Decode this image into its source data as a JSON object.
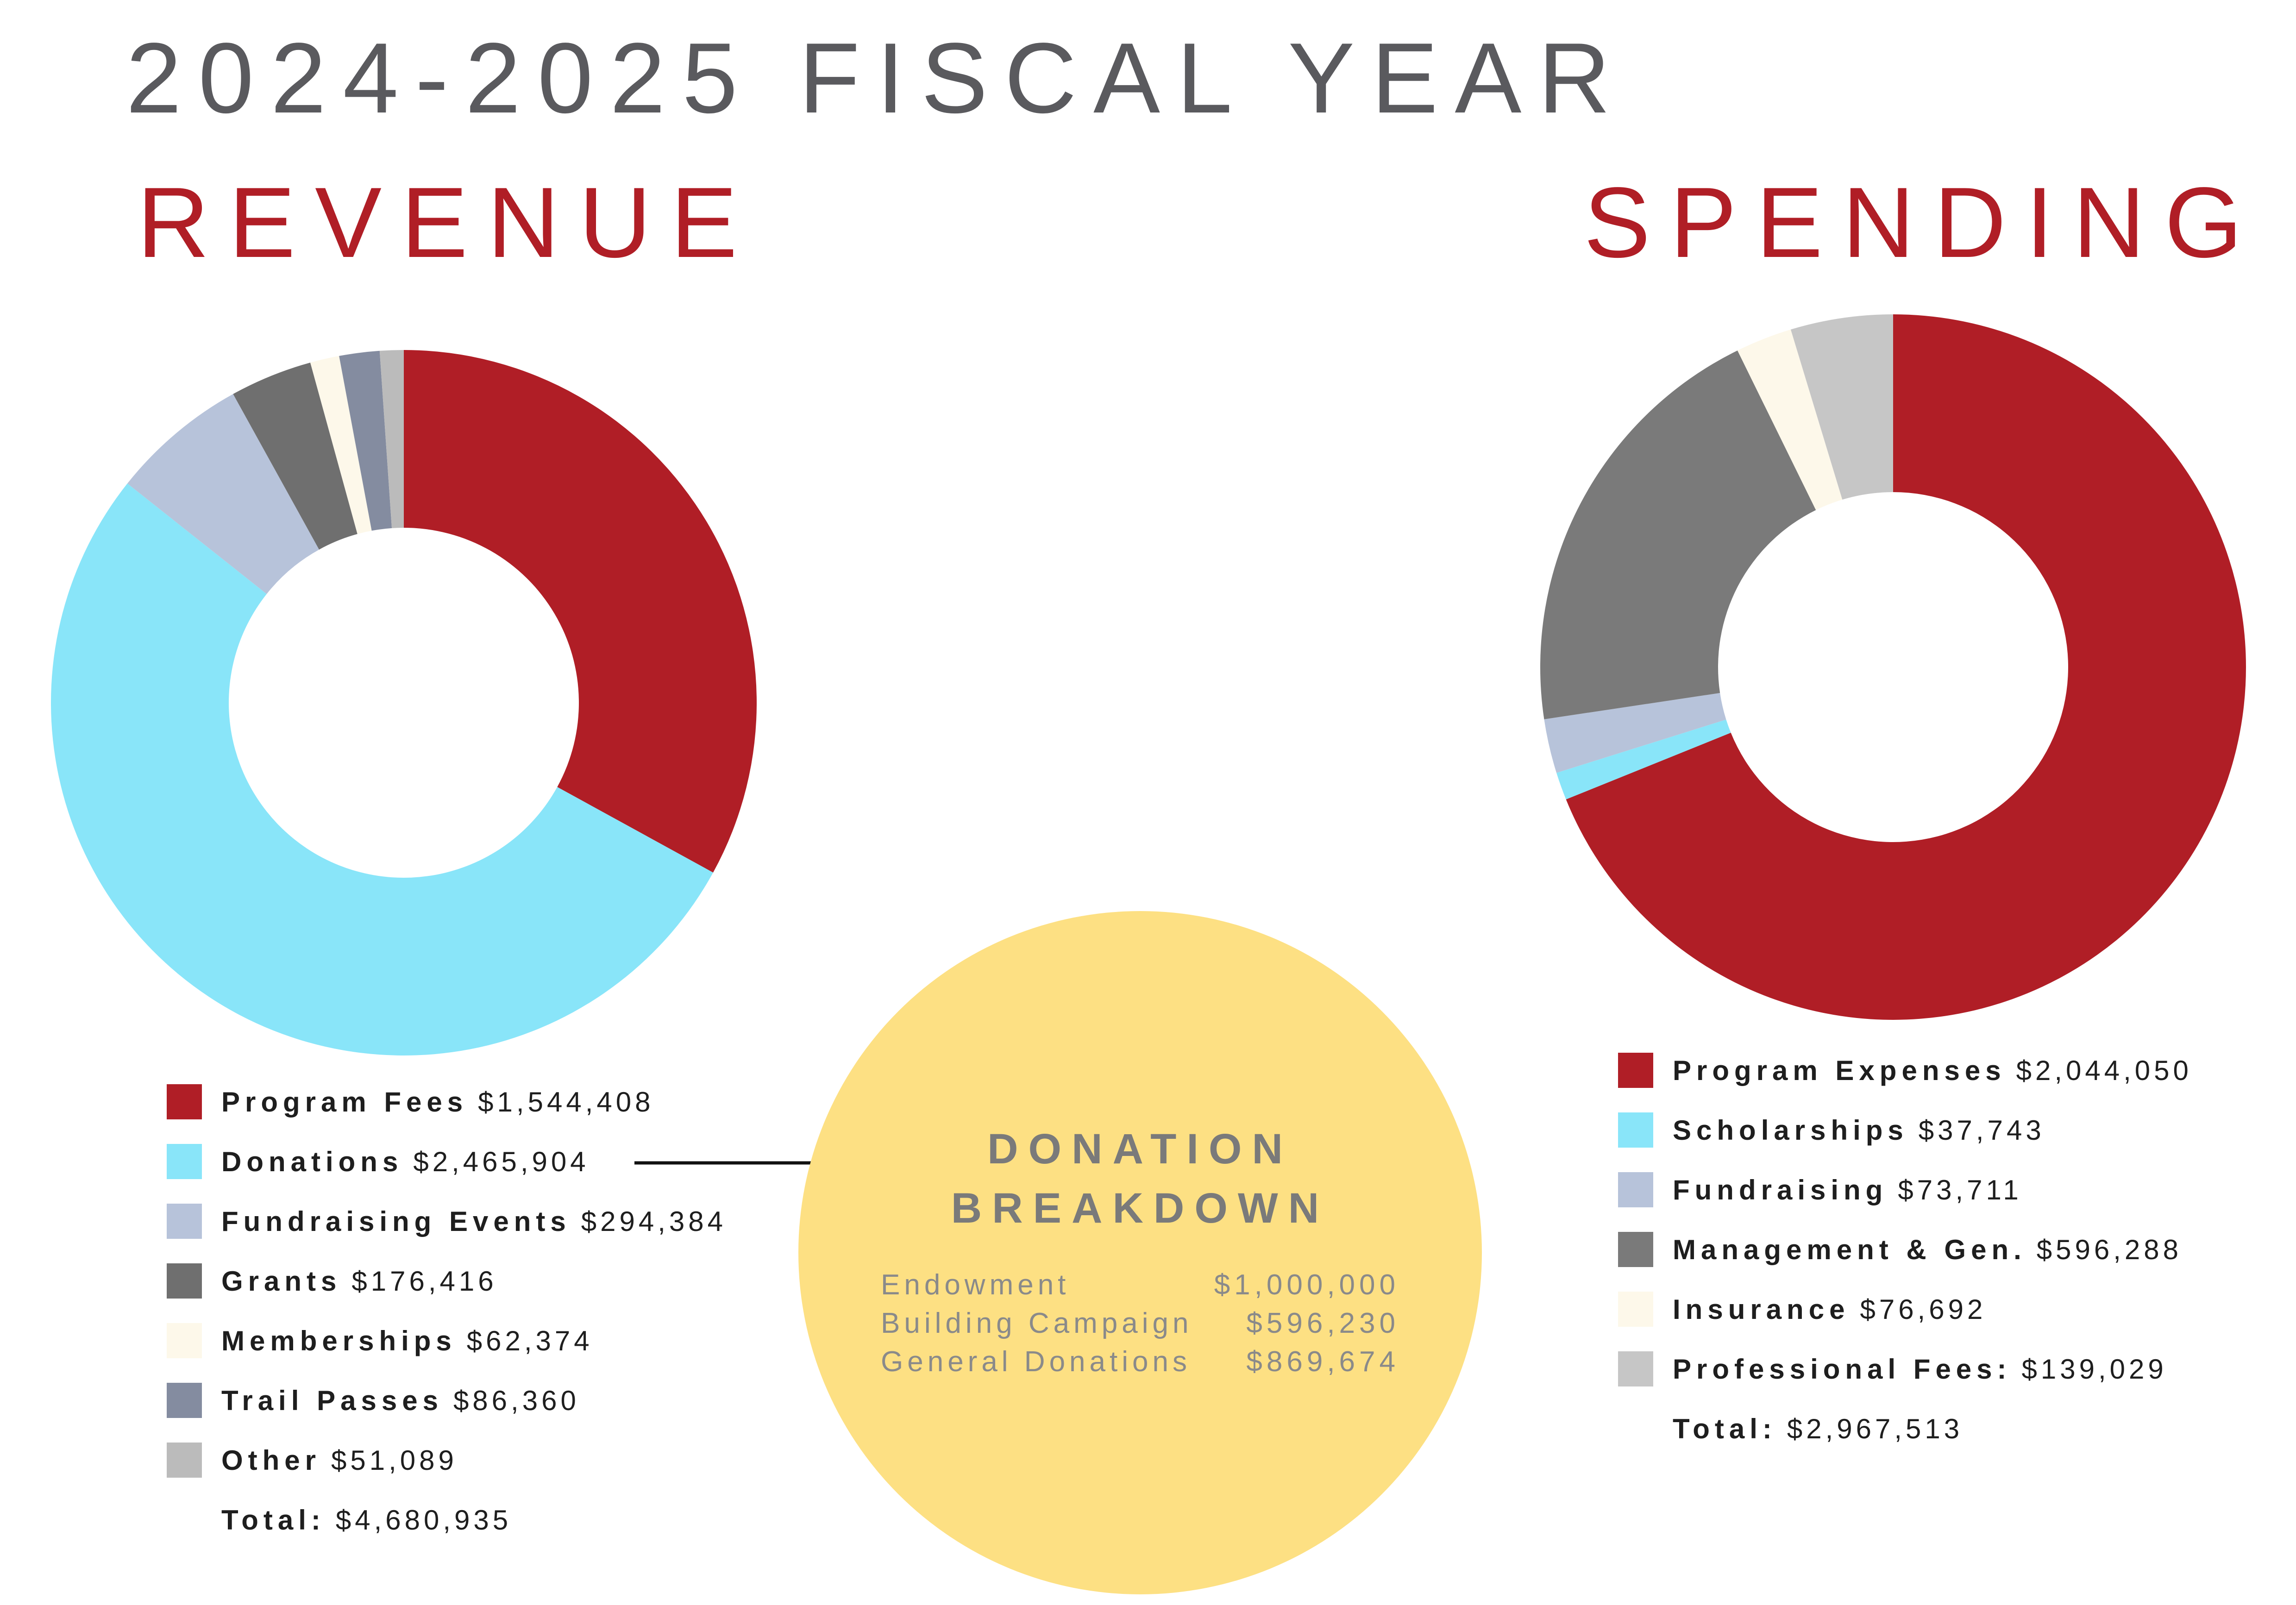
{
  "title": "2024-2025 FISCAL YEAR",
  "chart_data": [
    {
      "type": "pie",
      "donut": true,
      "title": "REVENUE",
      "categories": [
        "Program Fees",
        "Donations",
        "Fundraising Events",
        "Grants",
        "Memberships",
        "Trail Passes",
        "Other"
      ],
      "values": [
        1544408,
        2465904,
        294384,
        176416,
        62374,
        86360,
        51089
      ],
      "colors": [
        "#b01e26",
        "#89e5f9",
        "#b7c3da",
        "#6f6f6f",
        "#fdf8ea",
        "#848ca0",
        "#bbbbbb"
      ],
      "legend": [
        {
          "label": "Program Fees",
          "amount": "$1,544,408"
        },
        {
          "label": "Donations",
          "amount": "$2,465,904"
        },
        {
          "label": "Fundraising Events",
          "amount": "$294,384"
        },
        {
          "label": "Grants",
          "amount": "$176,416"
        },
        {
          "label": "Memberships",
          "amount": "$62,374"
        },
        {
          "label": "Trail Passes",
          "amount": "$86,360"
        },
        {
          "label": "Other",
          "amount": "$51,089"
        }
      ],
      "total_label": "Total:",
      "total_amount": "$4,680,935"
    },
    {
      "type": "pie",
      "donut": true,
      "title": "SPENDING",
      "categories": [
        "Program Expenses",
        "Scholarships",
        "Fundraising",
        "Management & Gen.",
        "Insurance",
        "Professional Fees"
      ],
      "values": [
        2044050,
        37743,
        73711,
        596288,
        76692,
        139029
      ],
      "colors": [
        "#b01e26",
        "#89e5f9",
        "#b7c3da",
        "#7a7a7a",
        "#fdf8ea",
        "#c6c6c6"
      ],
      "legend": [
        {
          "label": "Program Expenses",
          "amount": "$2,044,050"
        },
        {
          "label": "Scholarships",
          "amount": "$37,743"
        },
        {
          "label": "Fundraising",
          "amount": "$73,711"
        },
        {
          "label": "Management & Gen.",
          "amount": "$596,288"
        },
        {
          "label": "Insurance",
          "amount": "$76,692"
        },
        {
          "label": "Professional Fees:",
          "amount": "$139,029"
        }
      ],
      "total_label": "Total:",
      "total_amount": "$2,967,513"
    }
  ],
  "donation_breakdown": {
    "title_line1": "DONATION",
    "title_line2": "BREAKDOWN",
    "rows": [
      {
        "label": "Endowment",
        "amount": "$1,000,000"
      },
      {
        "label": "Building Campaign",
        "amount": "$596,230"
      },
      {
        "label": "General Donations",
        "amount": "$869,674"
      }
    ]
  },
  "colors": {
    "accent": "#b01e26",
    "title_gray": "#5a5a5e",
    "donation_circle": "#fde083"
  }
}
